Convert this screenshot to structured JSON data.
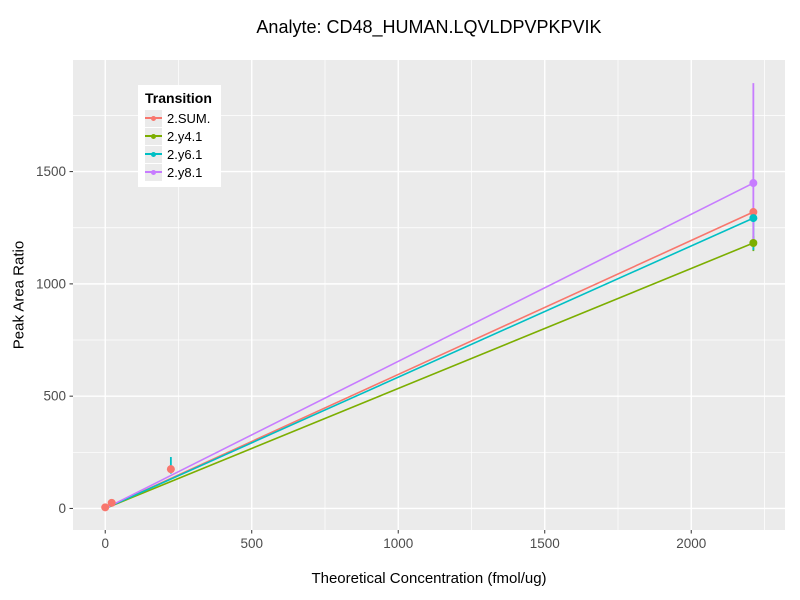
{
  "chart_data": {
    "type": "line",
    "title": "Analyte: CD48_HUMAN.LQVLDPVPKPVIK",
    "xlabel": "Theoretical Concentration (fmol/ug)",
    "ylabel": "Peak Area Ratio",
    "xlim": [
      -110,
      2320
    ],
    "ylim": [
      -96,
      1997
    ],
    "x_ticks": [
      0,
      500,
      1000,
      1500,
      2000
    ],
    "y_ticks": [
      0,
      500,
      1000,
      1500
    ],
    "x_minor_ticks": [
      250,
      750,
      1250,
      1750,
      2250
    ],
    "y_minor_ticks": [
      250,
      750,
      1250,
      1750
    ],
    "grid": true,
    "panel_bg": "#EBEBEB",
    "grid_color": "#FFFFFF",
    "tick_color": "#333333",
    "tick_label_color": "#4D4D4D",
    "legend": {
      "title": "Transition",
      "position": "inside-top-left"
    },
    "series": [
      {
        "name": "2.SUM.",
        "color": "#F8766D",
        "line": {
          "x": [
            0,
            2212
          ],
          "y": [
            0,
            1320
          ]
        },
        "points": [
          {
            "x": 0,
            "y": 5
          },
          {
            "x": 22,
            "y": 25
          },
          {
            "x": 224,
            "y": 175
          },
          {
            "x": 2212,
            "y": 1320
          }
        ]
      },
      {
        "name": "2.y4.1",
        "color": "#7CAE00",
        "line": {
          "x": [
            0,
            2212
          ],
          "y": [
            0,
            1182
          ]
        },
        "points": [
          {
            "x": 2212,
            "y": 1182,
            "ymin": 1146,
            "ymax": 1213
          }
        ]
      },
      {
        "name": "2.y6.1",
        "color": "#00BFC4",
        "line": {
          "x": [
            0,
            2212
          ],
          "y": [
            0,
            1293
          ]
        },
        "points": [
          {
            "x": 224,
            "y": 185,
            "ymin": 155,
            "ymax": 229,
            "hidden": true
          },
          {
            "x": 2212,
            "y": 1293,
            "ymin": 1150,
            "ymax": 1330
          }
        ]
      },
      {
        "name": "2.y8.1",
        "color": "#C77CFF",
        "line": {
          "x": [
            0,
            2212
          ],
          "y": [
            0,
            1449
          ]
        },
        "points": [
          {
            "x": 2212,
            "y": 1449,
            "ymin": 1164,
            "ymax": 1894
          }
        ]
      }
    ]
  }
}
